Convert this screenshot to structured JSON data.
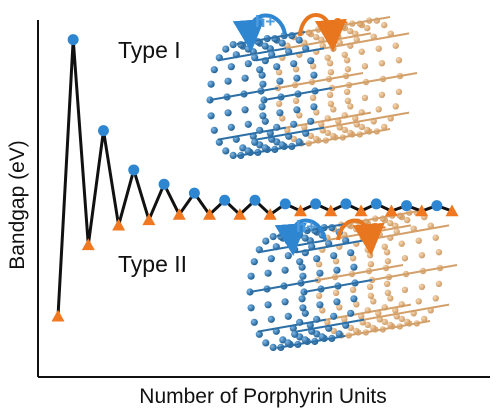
{
  "chart_data": {
    "type": "line",
    "title": "",
    "xlabel": "Number of Porphyrin Units",
    "ylabel": "Bandgap (eV)",
    "ticks_shown": false,
    "grid": false,
    "ylim": [
      0,
      100
    ],
    "x": [
      1,
      2,
      3,
      4,
      5,
      6,
      7,
      8,
      9,
      10,
      11,
      12,
      13,
      14,
      15,
      16,
      17,
      18,
      19,
      20,
      21,
      22,
      23,
      24,
      25,
      26,
      27
    ],
    "colors": {
      "line": "#111111",
      "typeI": "#2E86D1",
      "typeII": "#F07820",
      "molecule": "#2B6FA6",
      "molecule_back": "#D9A066"
    },
    "series": [
      {
        "name": "Type I",
        "marker": "circle",
        "x": [
          2,
          4,
          6,
          8,
          10,
          12,
          14,
          16,
          18,
          20,
          22,
          24,
          26
        ],
        "values": [
          94.5,
          69,
          58,
          54,
          51.5,
          49.5,
          49.5,
          48.5,
          48.5,
          48.5,
          48.5,
          48,
          48
        ]
      },
      {
        "name": "Type II",
        "marker": "triangle",
        "x": [
          1,
          3,
          5,
          7,
          9,
          11,
          13,
          15,
          17,
          19,
          21,
          23,
          25,
          27
        ],
        "values": [
          17,
          37,
          42.5,
          44,
          45.5,
          45.5,
          45.5,
          45.5,
          46.5,
          46.5,
          46.5,
          46.5,
          46.5,
          46.5
        ]
      }
    ]
  },
  "labels": {
    "type_i": "Type I",
    "type_ii": "Type II",
    "hole": "h+",
    "electron": "e-"
  }
}
